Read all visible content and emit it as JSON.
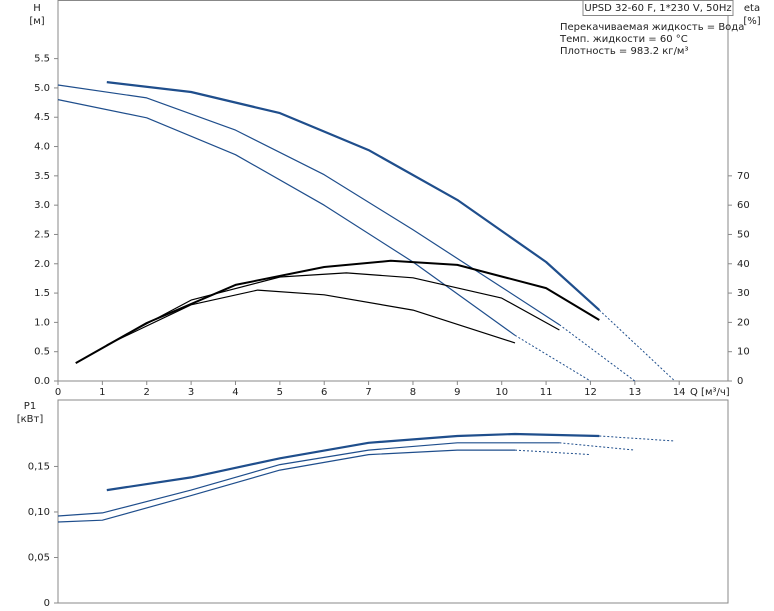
{
  "chart_data": [
    {
      "type": "line",
      "label_box": "UPSD 32-60 F, 1*230 V, 50Hz",
      "notes": [
        "Перекачиваемая жидкость = Вода",
        "Темп. жидкости = 60 °C",
        "Плотность = 983.2 кг/м³"
      ],
      "ylabel": "H",
      "yunit": "[м]",
      "y2label": "eta",
      "y2unit": "[%]",
      "xlabel": "Q [м³/ч]",
      "xlim": [
        0,
        15.1
      ],
      "xticks": [
        0,
        1,
        2,
        3,
        4,
        5,
        6,
        7,
        8,
        9,
        10,
        11,
        12,
        13,
        14
      ],
      "ylim": [
        0,
        6.5
      ],
      "yticks": [
        {
          "value": 0,
          "label": "0.0"
        },
        0.5,
        {
          "value": 1,
          "label": "1.0"
        },
        1.5,
        {
          "value": 2,
          "label": "2.0"
        },
        2.5,
        {
          "value": 3,
          "label": "3.0"
        },
        3.5,
        {
          "value": 4,
          "label": "4.0"
        },
        4.5,
        {
          "value": 5,
          "label": "5.0"
        },
        5.5
      ],
      "y2lim": [
        0,
        130
      ],
      "y2ticks": [
        0,
        10,
        20,
        30,
        40,
        50,
        60,
        70
      ],
      "series": [
        {
          "color": "#1f4e8c",
          "line_width": 2.2,
          "dashed": false,
          "x": [
            1.1,
            3,
            5,
            7,
            9,
            11,
            12.2
          ],
          "values": [
            5.1,
            4.93,
            4.57,
            3.94,
            3.09,
            2.03,
            1.21
          ]
        },
        {
          "color": "#1f4e8c",
          "line_width": 1,
          "dashed": true,
          "x": [
            12.2,
            13.9
          ],
          "values": [
            1.21,
            0
          ]
        },
        {
          "color": "#1f4e8c",
          "line_width": 1.2,
          "dashed": false,
          "x": [
            0,
            2,
            4,
            6,
            8,
            10,
            11.3
          ],
          "values": [
            5.05,
            4.83,
            4.28,
            3.52,
            2.58,
            1.6,
            0.96
          ]
        },
        {
          "color": "#1f4e8c",
          "line_width": 1,
          "dashed": true,
          "x": [
            11.3,
            13
          ],
          "values": [
            0.96,
            0
          ]
        },
        {
          "color": "#1f4e8c",
          "line_width": 1.2,
          "dashed": false,
          "x": [
            0,
            2,
            4,
            6,
            8,
            10.3
          ],
          "values": [
            4.8,
            4.49,
            3.86,
            3.0,
            2.03,
            0.78
          ]
        },
        {
          "color": "#1f4e8c",
          "line_width": 1,
          "dashed": true,
          "x": [
            10.3,
            12
          ],
          "values": [
            0.78,
            0
          ]
        },
        {
          "color": "#000000",
          "line_width": 2,
          "dashed": false,
          "axis": "y2",
          "x": [
            0.4,
            2,
            4,
            6,
            7.5,
            9,
            11,
            12.2
          ],
          "values": [
            6.1,
            19.8,
            32.8,
            38.9,
            41,
            39.6,
            31.7,
            20.8
          ]
        },
        {
          "color": "#000000",
          "line_width": 1.2,
          "dashed": false,
          "axis": "y2",
          "x": [
            1.1,
            3,
            5,
            6.5,
            8,
            10,
            11.3
          ],
          "values": [
            12.3,
            27.6,
            35.5,
            36.9,
            35.2,
            28.3,
            17.4
          ]
        },
        {
          "color": "#000000",
          "line_width": 1.2,
          "dashed": false,
          "axis": "y2",
          "x": [
            1.1,
            3,
            4.5,
            6,
            8,
            10.3
          ],
          "values": [
            12.3,
            26,
            31,
            29.4,
            24.2,
            13
          ]
        }
      ]
    },
    {
      "type": "line",
      "ylabel": "P1",
      "yunit": "[кВт]",
      "xlim": [
        0,
        15.1
      ],
      "ylim": [
        0,
        0.223
      ],
      "yticks": [
        0,
        {
          "value": 0.05,
          "label": "0,05"
        },
        {
          "value": 0.1,
          "label": "0,10"
        },
        {
          "value": 0.15,
          "label": "0,15"
        }
      ],
      "series": [
        {
          "color": "#1f4e8c",
          "line_width": 2.2,
          "dashed": false,
          "x": [
            1.1,
            3,
            5,
            7,
            9,
            10.3,
            12.2
          ],
          "values": [
            0.124,
            0.138,
            0.159,
            0.176,
            0.1835,
            0.1857,
            0.1835
          ]
        },
        {
          "color": "#1f4e8c",
          "line_width": 1,
          "dashed": true,
          "x": [
            12.2,
            13.9
          ],
          "values": [
            0.1835,
            0.178
          ]
        },
        {
          "color": "#1f4e8c",
          "line_width": 1.2,
          "dashed": false,
          "x": [
            0,
            1,
            3,
            5,
            7,
            9,
            11.3
          ],
          "values": [
            0.0956,
            0.099,
            0.124,
            0.152,
            0.168,
            0.176,
            0.176
          ]
        },
        {
          "color": "#1f4e8c",
          "line_width": 1,
          "dashed": true,
          "x": [
            11.3,
            13
          ],
          "values": [
            0.176,
            0.168
          ]
        },
        {
          "color": "#1f4e8c",
          "line_width": 1.2,
          "dashed": false,
          "x": [
            0,
            1,
            3,
            5,
            7,
            9,
            10.3
          ],
          "values": [
            0.089,
            0.091,
            0.118,
            0.146,
            0.163,
            0.168,
            0.168
          ]
        },
        {
          "color": "#1f4e8c",
          "line_width": 1,
          "dashed": true,
          "x": [
            10.3,
            12
          ],
          "values": [
            0.168,
            0.163
          ]
        }
      ]
    }
  ]
}
